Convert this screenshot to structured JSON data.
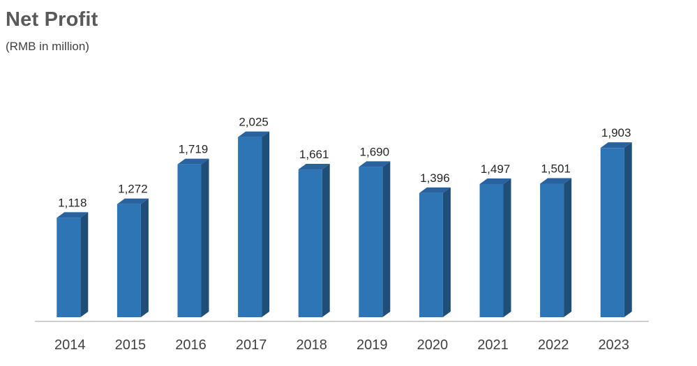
{
  "chart_data": {
    "type": "bar",
    "title": "Net Profit",
    "subtitle": "(RMB in million)",
    "categories": [
      "2014",
      "2015",
      "2016",
      "2017",
      "2018",
      "2019",
      "2020",
      "2021",
      "2022",
      "2023"
    ],
    "values": [
      1118,
      1272,
      1719,
      2025,
      1661,
      1690,
      1396,
      1497,
      1501,
      1903
    ],
    "value_labels": [
      "1,118",
      "1,272",
      "1,719",
      "2,025",
      "1,661",
      "1,690",
      "1,396",
      "1,497",
      "1,501",
      "1,903"
    ],
    "xlabel": "",
    "ylabel": "",
    "ylim": [
      0,
      2200
    ],
    "grid": false,
    "legend": "none",
    "style": "3d-column",
    "colors": {
      "bar_front": "#2e75b6",
      "bar_side": "#1f4e79",
      "bar_top": "#2a62a0",
      "axis": "#bfbfbf"
    }
  }
}
